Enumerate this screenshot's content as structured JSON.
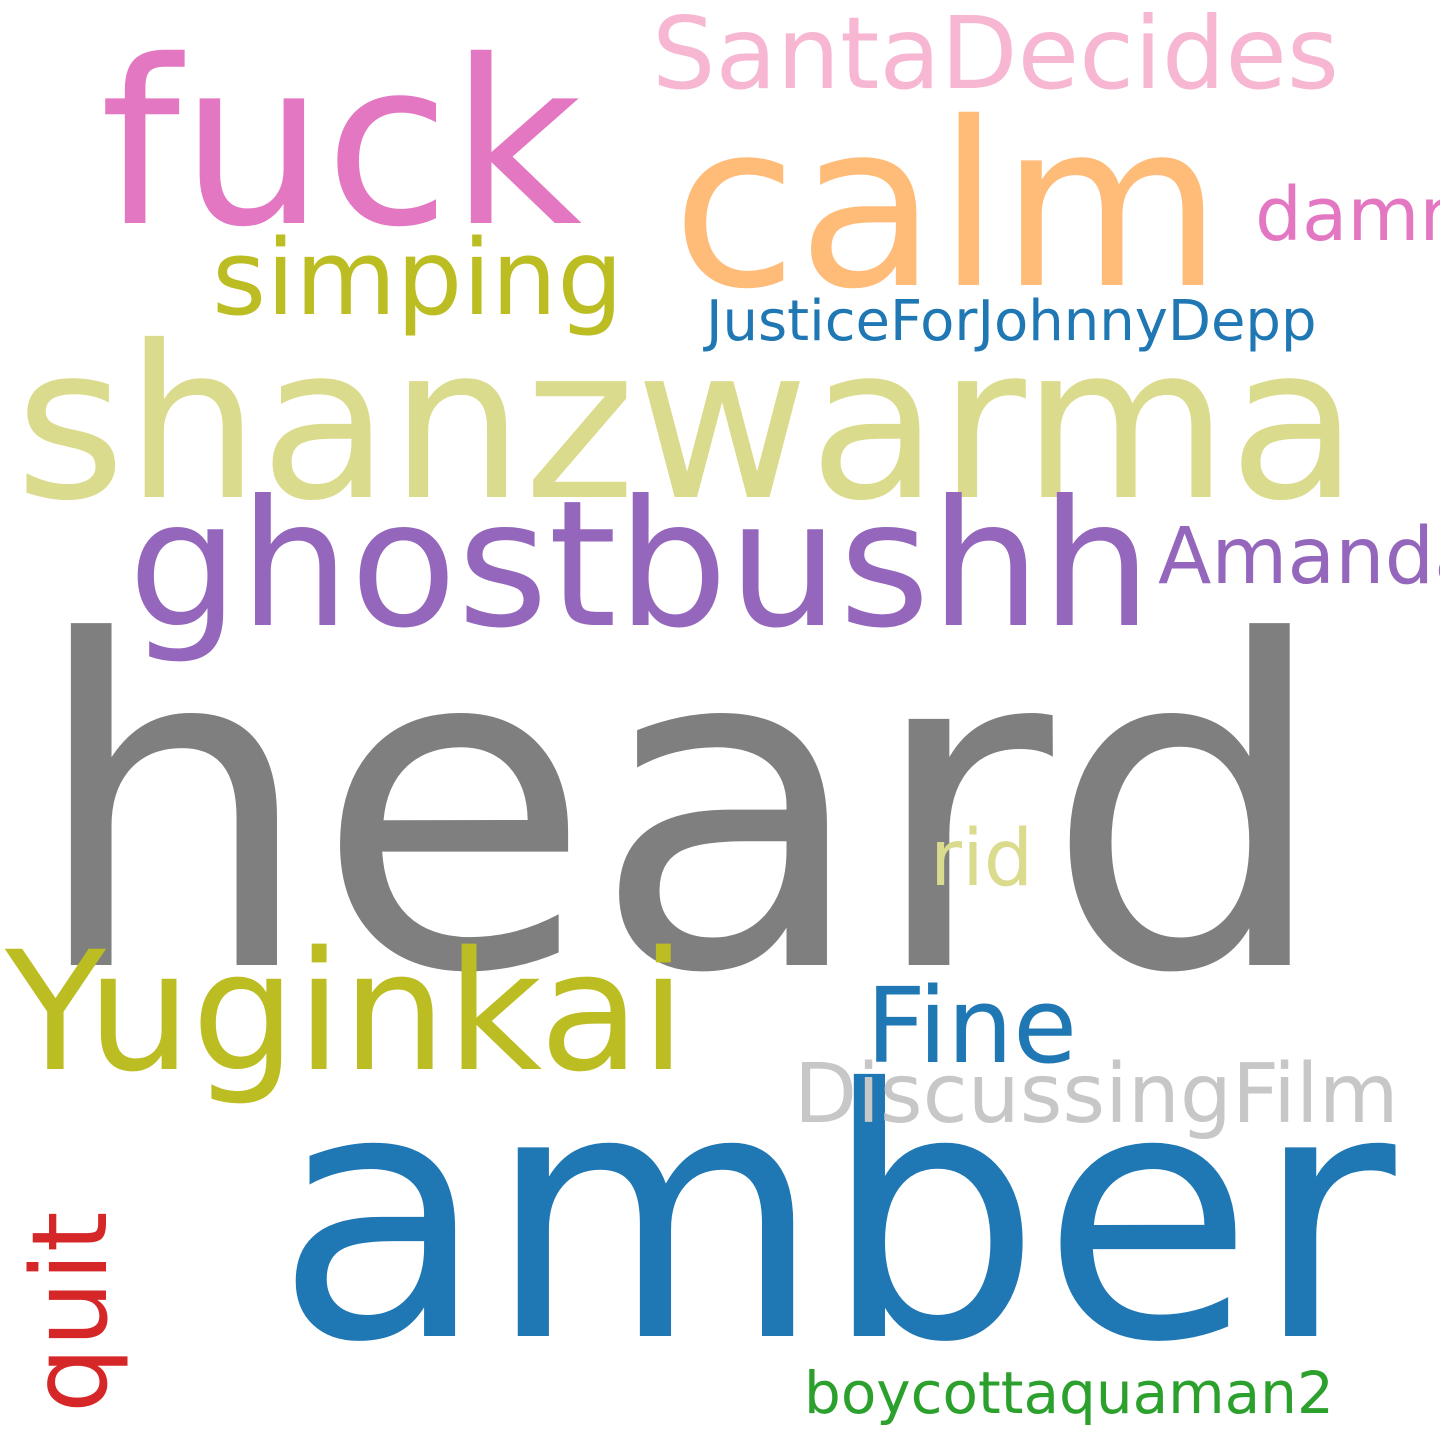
{
  "words": {
    "heard": {
      "text": "heard",
      "color": "#7f7f7f"
    },
    "amber": {
      "text": "amber",
      "color": "#1f77b4"
    },
    "shanzwarma": {
      "text": "shanzwarma",
      "color": "#dbdb8d"
    },
    "fuck": {
      "text": "fuck",
      "color": "#e377c2"
    },
    "calm": {
      "text": "calm",
      "color": "#ffbb78"
    },
    "ghostbushh": {
      "text": "ghostbushh",
      "color": "#9467bd"
    },
    "yuginkai": {
      "text": "Yuginkai",
      "color": "#bcbd22"
    },
    "santadecides": {
      "text": "SantaDecides",
      "color": "#f7b6d2"
    },
    "simping": {
      "text": "simping",
      "color": "#bcbd22"
    },
    "damn": {
      "text": "damn",
      "color": "#e377c2"
    },
    "justice": {
      "text": "JusticeForJohnnyDepp",
      "color": "#1f77b4"
    },
    "amanda": {
      "text": "Amanda",
      "color": "#9467bd"
    },
    "rid": {
      "text": "rid",
      "color": "#dbdb8d"
    },
    "fine": {
      "text": "Fine",
      "color": "#1f77b4"
    },
    "discussing": {
      "text": "DiscussingFilm",
      "color": "#c7c7c7"
    },
    "quit": {
      "text": "quit",
      "color": "#d62728"
    },
    "boycott": {
      "text": "boycottaquaman2",
      "color": "#2ca02c"
    }
  }
}
